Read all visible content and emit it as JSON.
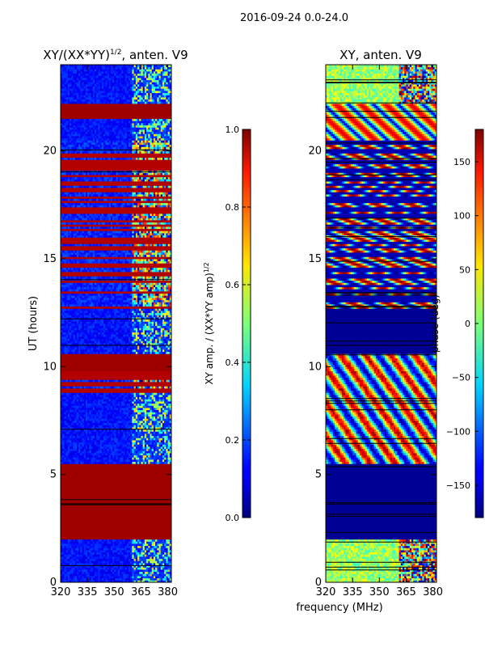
{
  "figure": {
    "suptitle": "2016-09-24 0.0-24.0",
    "shared_xlabel": "frequency (MHz)"
  },
  "chart_data": [
    {
      "type": "heatmap",
      "title": "XY/(XX*YY)^{1/2}, anten. V9",
      "title_base": "XY/(XX*YY)",
      "title_exp": "1/2",
      "title_tail": ", anten. V9",
      "xlabel": "",
      "ylabel": "UT (hours)",
      "xlim": [
        320,
        382
      ],
      "ylim": [
        0,
        24
      ],
      "xticks": [
        320,
        335,
        350,
        365,
        380
      ],
      "yticks": [
        0,
        5,
        10,
        15,
        20
      ],
      "xtick_labels": [
        "320",
        "335",
        "350",
        "365",
        "380"
      ],
      "ytick_labels": [
        "0",
        "5",
        "10",
        "15",
        "20"
      ],
      "colorbar": {
        "label": "XY amp. / (XX*YY amp)^{1/2}",
        "label_base": "XY amp. / (XX*YY amp)",
        "label_exp": "1/2",
        "range": [
          0.0,
          1.0
        ],
        "ticks": [
          "0.0",
          "0.2",
          "0.4",
          "0.6",
          "0.8",
          "1.0"
        ],
        "colormap": "jet"
      },
      "bands": [
        {
          "t0": 0.0,
          "t1": 2.0,
          "state": "low"
        },
        {
          "t0": 2.0,
          "t1": 5.5,
          "state": "saturated"
        },
        {
          "t0": 5.5,
          "t1": 8.8,
          "state": "low"
        },
        {
          "t0": 8.8,
          "t1": 9.8,
          "state": "striped"
        },
        {
          "t0": 9.8,
          "t1": 10.6,
          "state": "saturated"
        },
        {
          "t0": 10.6,
          "t1": 12.7,
          "state": "low"
        },
        {
          "t0": 12.7,
          "t1": 20.5,
          "state": "striped"
        },
        {
          "t0": 20.5,
          "t1": 21.5,
          "state": "low"
        },
        {
          "t0": 21.5,
          "t1": 22.2,
          "state": "saturated"
        },
        {
          "t0": 22.2,
          "t1": 24.0,
          "state": "low"
        }
      ]
    },
    {
      "type": "heatmap",
      "title": "XY, anten. V9",
      "xlabel": "frequency (MHz)",
      "ylabel": "",
      "xlim": [
        320,
        382
      ],
      "ylim": [
        0,
        24
      ],
      "xticks": [
        320,
        335,
        350,
        365,
        380
      ],
      "yticks": [
        0,
        5,
        10,
        15,
        20
      ],
      "xtick_labels": [
        "320",
        "335",
        "350",
        "365",
        "380"
      ],
      "ytick_labels": [
        "0",
        "5",
        "10",
        "15",
        "20"
      ],
      "colorbar": {
        "label": "phase (deg)",
        "range": [
          -180,
          180
        ],
        "ticks": [
          "150",
          "100",
          "50",
          "0",
          "−50",
          "−100",
          "−150"
        ],
        "tick_values": [
          150,
          100,
          50,
          0,
          -50,
          -100,
          -150
        ],
        "colormap": "jet"
      },
      "bands": [
        {
          "t0": 0.0,
          "t1": 2.0,
          "state": "green-noise"
        },
        {
          "t0": 2.0,
          "t1": 5.5,
          "state": "flagged-min"
        },
        {
          "t0": 5.5,
          "t1": 9.8,
          "state": "phase-wrap"
        },
        {
          "t0": 9.8,
          "t1": 10.6,
          "state": "phase-wrap"
        },
        {
          "t0": 10.6,
          "t1": 12.7,
          "state": "flagged-min"
        },
        {
          "t0": 12.7,
          "t1": 20.5,
          "state": "striped"
        },
        {
          "t0": 20.5,
          "t1": 22.2,
          "state": "wave"
        },
        {
          "t0": 22.2,
          "t1": 24.0,
          "state": "green-noise"
        }
      ]
    }
  ]
}
